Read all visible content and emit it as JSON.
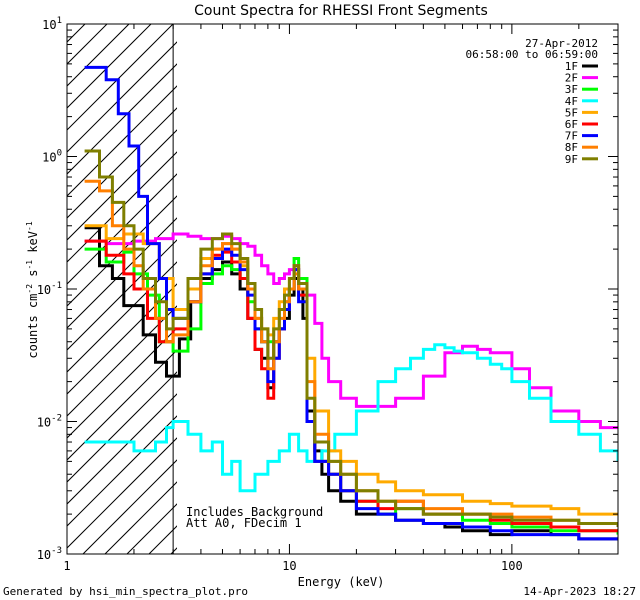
{
  "chart_data": {
    "type": "line",
    "title": "Count Spectra for RHESSI Front Segments",
    "xlabel": "Energy (keV)",
    "ylabel_parts": {
      "base": "counts cm",
      "e1": "-2",
      "mid": " s",
      "e2": "-1",
      "end": " keV",
      "e3": "-1"
    },
    "xscale": "log",
    "yscale": "log",
    "xlim": [
      1,
      300
    ],
    "ylim": [
      0.001,
      10
    ],
    "x_ticks": [
      {
        "v": 1,
        "label": "1"
      },
      {
        "v": 10,
        "label": "10"
      },
      {
        "v": 100,
        "label": "100"
      }
    ],
    "y_ticks": [
      {
        "v": 10,
        "base": "10",
        "exp": "1"
      },
      {
        "v": 1,
        "base": "10",
        "exp": "0"
      },
      {
        "v": 0.1,
        "base": "10",
        "exp": "-1"
      },
      {
        "v": 0.01,
        "base": "10",
        "exp": "-2"
      },
      {
        "v": 0.001,
        "base": "10",
        "exp": "-3"
      }
    ],
    "hatched_region": [
      1,
      3
    ],
    "date": "27-Apr-2012",
    "time_range": "06:58:00 to 06:59:00",
    "annotations": [
      "Includes Background",
      "Att A0, FDecim 1"
    ],
    "series": [
      {
        "name": "1F",
        "color": "#000000",
        "x": [
          1.2,
          1.4,
          1.6,
          1.8,
          2.0,
          2.2,
          2.5,
          2.8,
          3.2,
          3.6,
          4.0,
          4.5,
          5.0,
          5.5,
          6.0,
          6.5,
          7.0,
          7.5,
          8.0,
          8.5,
          9.0,
          9.5,
          10.0,
          10.5,
          11.0,
          11.5,
          12.0,
          13,
          14,
          15,
          17,
          20,
          25,
          30,
          40,
          50,
          60,
          80,
          100,
          150,
          200,
          250,
          300
        ],
        "y": [
          0.29,
          0.15,
          0.12,
          0.075,
          0.075,
          0.045,
          0.028,
          0.022,
          0.042,
          0.08,
          0.12,
          0.14,
          0.16,
          0.13,
          0.1,
          0.06,
          0.035,
          0.03,
          0.018,
          0.04,
          0.05,
          0.06,
          0.09,
          0.12,
          0.1,
          0.06,
          0.012,
          0.006,
          0.004,
          0.003,
          0.0025,
          0.002,
          0.002,
          0.0018,
          0.0017,
          0.0016,
          0.0015,
          0.0014,
          0.0015,
          0.0014,
          0.0013,
          0.0013,
          0.0013
        ]
      },
      {
        "name": "2F",
        "color": "#ff00ff",
        "x": [
          1.2,
          1.5,
          2.0,
          2.5,
          3.0,
          3.5,
          4.0,
          4.5,
          5.0,
          5.5,
          6.0,
          6.5,
          7.0,
          7.5,
          8.0,
          8.5,
          9.0,
          9.5,
          10.0,
          11,
          12,
          13,
          14,
          15,
          17,
          20,
          25,
          30,
          40,
          50,
          60,
          70,
          80,
          100,
          120,
          150,
          200,
          250,
          300
        ],
        "y": [
          0.23,
          0.22,
          0.23,
          0.24,
          0.26,
          0.25,
          0.24,
          0.24,
          0.25,
          0.24,
          0.22,
          0.21,
          0.18,
          0.15,
          0.13,
          0.11,
          0.12,
          0.13,
          0.14,
          0.12,
          0.09,
          0.055,
          0.03,
          0.02,
          0.015,
          0.013,
          0.013,
          0.015,
          0.022,
          0.033,
          0.037,
          0.035,
          0.033,
          0.025,
          0.018,
          0.012,
          0.01,
          0.009,
          0.009
        ]
      },
      {
        "name": "3F",
        "color": "#00ff00",
        "x": [
          1.2,
          1.5,
          1.8,
          2.0,
          2.3,
          2.6,
          3.0,
          3.5,
          4.0,
          4.5,
          5.0,
          5.5,
          6.0,
          6.5,
          7.0,
          7.5,
          8.0,
          8.5,
          9.0,
          9.5,
          10.0,
          10.5,
          11,
          12,
          13,
          15,
          17,
          20,
          25,
          30,
          40,
          60,
          80,
          100,
          150,
          200,
          300
        ],
        "y": [
          0.2,
          0.16,
          0.19,
          0.13,
          0.09,
          0.04,
          0.034,
          0.05,
          0.11,
          0.13,
          0.15,
          0.14,
          0.12,
          0.08,
          0.05,
          0.04,
          0.04,
          0.04,
          0.05,
          0.08,
          0.1,
          0.17,
          0.12,
          0.01,
          0.005,
          0.004,
          0.003,
          0.0025,
          0.002,
          0.0022,
          0.002,
          0.0018,
          0.0017,
          0.0016,
          0.0015,
          0.0015,
          0.0014
        ]
      },
      {
        "name": "4F",
        "color": "#00ffff",
        "x": [
          1.2,
          1.5,
          2.0,
          2.5,
          2.8,
          3.0,
          3.5,
          4.0,
          4.5,
          5.0,
          5.5,
          6.0,
          7.0,
          8.0,
          9.0,
          10.0,
          11,
          12,
          14,
          16,
          20,
          25,
          30,
          35,
          40,
          45,
          50,
          55,
          60,
          70,
          80,
          90,
          100,
          120,
          150,
          200,
          250,
          300
        ],
        "y": [
          0.007,
          0.007,
          0.006,
          0.007,
          0.009,
          0.01,
          0.008,
          0.006,
          0.007,
          0.004,
          0.005,
          0.003,
          0.004,
          0.005,
          0.006,
          0.008,
          0.006,
          0.005,
          0.006,
          0.008,
          0.012,
          0.02,
          0.025,
          0.03,
          0.035,
          0.038,
          0.036,
          0.034,
          0.033,
          0.03,
          0.027,
          0.025,
          0.02,
          0.015,
          0.01,
          0.008,
          0.006,
          0.005
        ]
      },
      {
        "name": "5F",
        "color": "#ffaa00",
        "x": [
          1.2,
          1.5,
          1.8,
          2.2,
          2.6,
          3.0,
          3.5,
          4.0,
          4.5,
          5.0,
          5.5,
          6.0,
          6.5,
          7.0,
          7.5,
          8.0,
          8.5,
          9.0,
          9.5,
          10.0,
          10.5,
          11,
          12,
          13,
          15,
          17,
          20,
          25,
          30,
          40,
          60,
          80,
          100,
          150,
          200,
          300
        ],
        "y": [
          0.3,
          0.24,
          0.26,
          0.22,
          0.12,
          0.07,
          0.1,
          0.17,
          0.2,
          0.22,
          0.2,
          0.15,
          0.1,
          0.06,
          0.05,
          0.045,
          0.06,
          0.08,
          0.1,
          0.12,
          0.14,
          0.11,
          0.03,
          0.012,
          0.006,
          0.005,
          0.004,
          0.0035,
          0.003,
          0.0028,
          0.0025,
          0.0024,
          0.0023,
          0.0022,
          0.002,
          0.002
        ]
      },
      {
        "name": "6F",
        "color": "#ff0000",
        "x": [
          1.2,
          1.5,
          1.8,
          2.0,
          2.3,
          2.6,
          3.0,
          3.5,
          4.0,
          4.5,
          5.0,
          5.5,
          6.0,
          6.5,
          7.0,
          7.5,
          8.0,
          8.5,
          9.0,
          9.5,
          10.0,
          10.5,
          11,
          12,
          13,
          15,
          17,
          20,
          25,
          30,
          40,
          60,
          80,
          100,
          150,
          200,
          300
        ],
        "y": [
          0.23,
          0.18,
          0.13,
          0.1,
          0.06,
          0.04,
          0.05,
          0.08,
          0.13,
          0.18,
          0.19,
          0.16,
          0.12,
          0.06,
          0.035,
          0.025,
          0.015,
          0.03,
          0.05,
          0.07,
          0.1,
          0.15,
          0.09,
          0.01,
          0.005,
          0.004,
          0.003,
          0.0025,
          0.0022,
          0.0025,
          0.002,
          0.002,
          0.0018,
          0.0017,
          0.0016,
          0.0015,
          0.0015
        ]
      },
      {
        "name": "7F",
        "color": "#0000ff",
        "x": [
          1.2,
          1.5,
          1.7,
          1.9,
          2.1,
          2.3,
          2.6,
          2.8,
          3.0,
          3.5,
          4.0,
          4.5,
          5.0,
          5.5,
          6.0,
          6.5,
          7.0,
          7.5,
          8.0,
          8.5,
          9.0,
          9.5,
          10.0,
          10.5,
          11,
          12,
          13,
          15,
          17,
          20,
          25,
          30,
          40,
          60,
          80,
          100,
          150,
          200,
          300
        ],
        "y": [
          4.7,
          3.8,
          2.1,
          1.2,
          0.5,
          0.22,
          0.12,
          0.07,
          0.06,
          0.08,
          0.13,
          0.17,
          0.2,
          0.18,
          0.14,
          0.09,
          0.05,
          0.04,
          0.02,
          0.03,
          0.05,
          0.07,
          0.1,
          0.14,
          0.08,
          0.01,
          0.005,
          0.004,
          0.003,
          0.0022,
          0.002,
          0.0018,
          0.0017,
          0.0016,
          0.0015,
          0.0014,
          0.0014,
          0.0013,
          0.0013
        ]
      },
      {
        "name": "8F",
        "color": "#ff7f00",
        "x": [
          1.2,
          1.4,
          1.6,
          1.8,
          2.0,
          2.2,
          2.5,
          2.8,
          3.0,
          3.5,
          4.0,
          4.5,
          5.0,
          5.5,
          6.0,
          6.5,
          7.0,
          7.5,
          8.0,
          8.5,
          9.0,
          9.5,
          10.0,
          10.5,
          11,
          12,
          13,
          15,
          17,
          20,
          25,
          30,
          40,
          60,
          80,
          100,
          150,
          200,
          300
        ],
        "y": [
          0.65,
          0.55,
          0.3,
          0.2,
          0.15,
          0.1,
          0.06,
          0.04,
          0.045,
          0.08,
          0.15,
          0.2,
          0.22,
          0.2,
          0.16,
          0.1,
          0.06,
          0.04,
          0.025,
          0.04,
          0.06,
          0.08,
          0.1,
          0.13,
          0.1,
          0.02,
          0.008,
          0.005,
          0.004,
          0.003,
          0.0025,
          0.0025,
          0.0022,
          0.002,
          0.002,
          0.0019,
          0.0018,
          0.0017,
          0.0017
        ]
      },
      {
        "name": "9F",
        "color": "#7f7f00",
        "x": [
          1.2,
          1.4,
          1.6,
          1.8,
          2.0,
          2.2,
          2.5,
          2.8,
          3.0,
          3.5,
          4.0,
          4.5,
          5.0,
          5.5,
          6.0,
          6.5,
          7.0,
          7.5,
          8.0,
          8.5,
          9.0,
          9.5,
          10.0,
          10.5,
          11,
          12,
          13,
          15,
          17,
          20,
          25,
          30,
          40,
          60,
          80,
          100,
          150,
          200,
          300
        ],
        "y": [
          1.1,
          0.7,
          0.45,
          0.3,
          0.2,
          0.12,
          0.08,
          0.05,
          0.06,
          0.12,
          0.2,
          0.24,
          0.26,
          0.22,
          0.17,
          0.11,
          0.07,
          0.05,
          0.03,
          0.05,
          0.07,
          0.09,
          0.12,
          0.15,
          0.11,
          0.015,
          0.007,
          0.005,
          0.004,
          0.003,
          0.0025,
          0.0022,
          0.002,
          0.002,
          0.0019,
          0.0018,
          0.0018,
          0.0017,
          0.0016
        ]
      }
    ]
  },
  "footer": {
    "generated_by": "Generated by hsi_min_spectra_plot.pro",
    "timestamp": "14-Apr-2023 18:27"
  }
}
